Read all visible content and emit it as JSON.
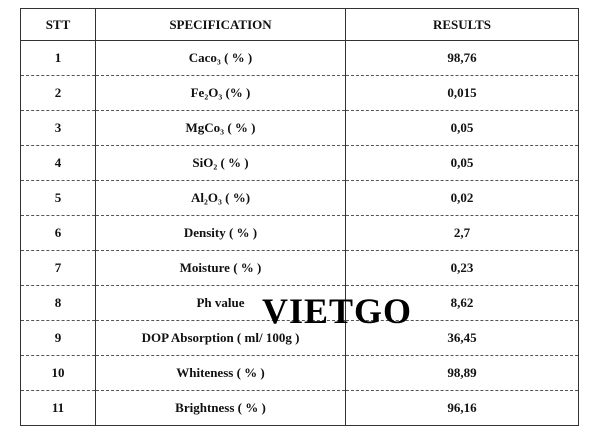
{
  "table": {
    "header": [
      "STT",
      "SPECIFICATION",
      "RESULTS"
    ],
    "rows": [
      [
        "1",
        "Caco₃ ( % )",
        "98,76"
      ],
      [
        "2",
        "Fe₂O₃ (% )",
        "0,015"
      ],
      [
        "3",
        "MgCo₃ ( % )",
        "0,05"
      ],
      [
        "4",
        "SiO₂ ( % )",
        "0,05"
      ],
      [
        "5",
        "Al₂O₃ ( %)",
        "0,02"
      ],
      [
        "6",
        "Density ( % )",
        "2,7"
      ],
      [
        "7",
        "Moisture ( % )",
        "0,23"
      ],
      [
        "8",
        "Ph value",
        "8,62"
      ],
      [
        "9",
        "DOP Absorption ( ml/ 100g )",
        "36,45"
      ],
      [
        "10",
        "Whiteness ( % )",
        "98,89"
      ],
      [
        "11",
        "Brightness ( % )",
        "96,16"
      ]
    ]
  },
  "watermark": "VIETGO"
}
